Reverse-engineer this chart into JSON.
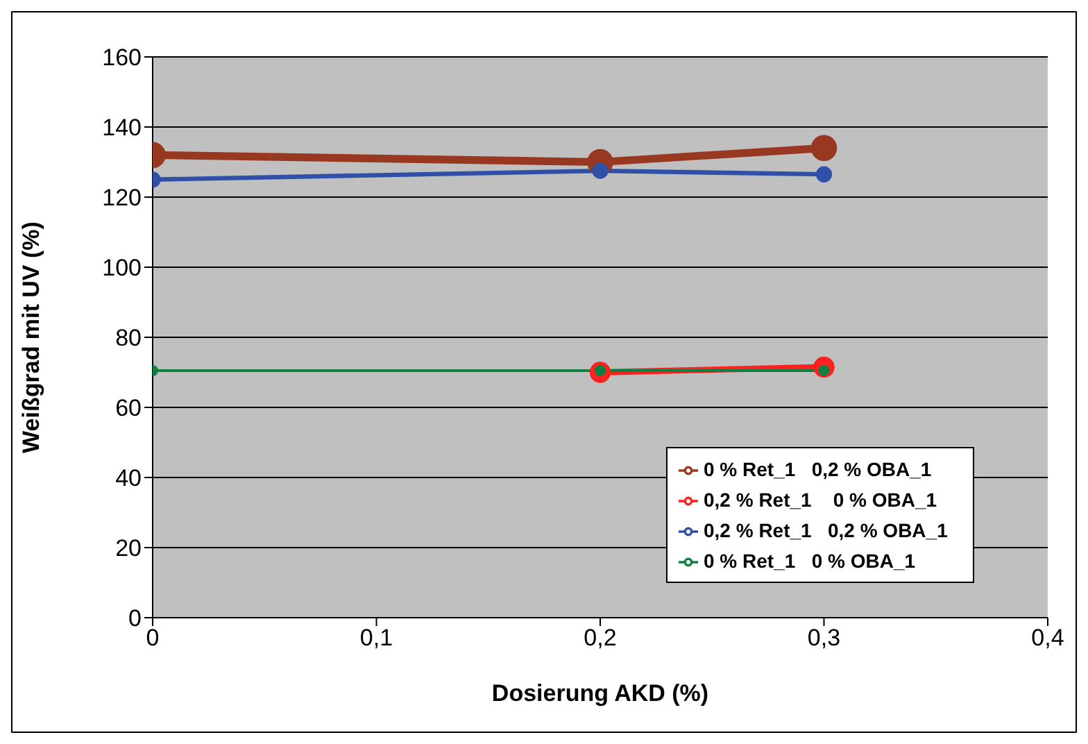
{
  "chart_data": {
    "type": "line",
    "xlabel": "Dosierung AKD (%)",
    "ylabel": "Weißgrad mit UV (%)",
    "xlim": [
      0,
      0.4
    ],
    "xticks": [
      {
        "value": 0,
        "label": "0"
      },
      {
        "value": 0.1,
        "label": "0,1"
      },
      {
        "value": 0.2,
        "label": "0,2"
      },
      {
        "value": 0.3,
        "label": "0,3"
      },
      {
        "value": 0.4,
        "label": "0,4"
      }
    ],
    "ylim": [
      0,
      160
    ],
    "yticks": [
      0,
      20,
      40,
      60,
      80,
      100,
      120,
      140,
      160
    ],
    "grid": "y",
    "legend": "bottom right",
    "marker": "circle",
    "line_style": "solid",
    "series": [
      {
        "name": "0 % Ret_1   0,2 % OBA_1",
        "color": "#993820",
        "x": [
          0,
          0.2,
          0.3
        ],
        "values": [
          132,
          130,
          134
        ]
      },
      {
        "name": "0,2 % Ret_1    0 % OBA_1",
        "color": "#ff2020",
        "x": [
          0.2,
          0.3
        ],
        "values": [
          70,
          71.5
        ]
      },
      {
        "name": "0,2 % Ret_1   0,2 % OBA_1",
        "color": "#3050a8",
        "x": [
          0,
          0.2,
          0.3
        ],
        "values": [
          125,
          127.5,
          126.5
        ]
      },
      {
        "name": "0 % Ret_1   0 % OBA_1",
        "color": "#108040",
        "x": [
          0,
          0.2,
          0.3
        ],
        "values": [
          70.5,
          70.5,
          70.5
        ]
      }
    ]
  }
}
